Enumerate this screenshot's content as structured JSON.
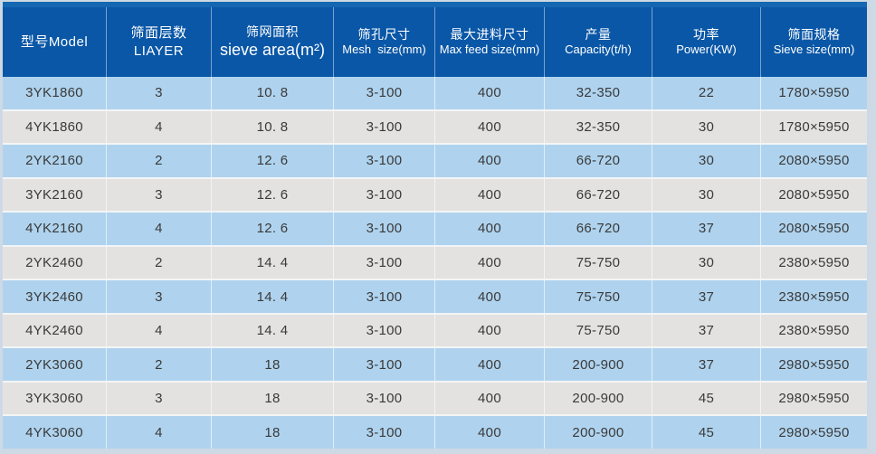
{
  "colors": {
    "frame_bg": "#cdd9e4",
    "header_bg": "#0a57a7",
    "header_strip": "#1567b2",
    "row_blue": "#afd3ee",
    "row_gray": "#e4e2e0",
    "header_text": "#ffffff",
    "body_text": "#3a3a3a"
  },
  "table": {
    "columns": [
      {
        "id": "model",
        "line1": "型号Model",
        "line2": ""
      },
      {
        "id": "layers",
        "line1": "筛面层数LIAYER",
        "line2": ""
      },
      {
        "id": "sieve-area",
        "line1": "筛网面积",
        "line2": "sieve area(m²)"
      },
      {
        "id": "mesh-size",
        "line1": "筛孔尺寸",
        "line2": "Mesh  size(mm)"
      },
      {
        "id": "max-feed-size",
        "line1": "最大进料尺寸",
        "line2": "Max feed size(mm)"
      },
      {
        "id": "capacity",
        "line1": "产量",
        "line2": "Capacity(t/h)"
      },
      {
        "id": "power",
        "line1": "功率",
        "line2": "Power(KW)"
      },
      {
        "id": "sieve-size",
        "line1": "筛面规格",
        "line2": "Sieve size(mm)"
      }
    ],
    "rows": [
      {
        "cells": [
          "3YK1860",
          "3",
          "10. 8",
          "3-100",
          "400",
          "32-350",
          "22",
          "1780×5950"
        ]
      },
      {
        "cells": [
          "4YK1860",
          "4",
          "10. 8",
          "3-100",
          "400",
          "32-350",
          "30",
          "1780×5950"
        ]
      },
      {
        "cells": [
          "2YK2160",
          "2",
          "12. 6",
          "3-100",
          "400",
          "66-720",
          "30",
          "2080×5950"
        ]
      },
      {
        "cells": [
          "3YK2160",
          "3",
          "12. 6",
          "3-100",
          "400",
          "66-720",
          "30",
          "2080×5950"
        ]
      },
      {
        "cells": [
          "4YK2160",
          "4",
          "12. 6",
          "3-100",
          "400",
          "66-720",
          "37",
          "2080×5950"
        ]
      },
      {
        "cells": [
          "2YK2460",
          "2",
          "14. 4",
          "3-100",
          "400",
          "75-750",
          "30",
          "2380×5950"
        ]
      },
      {
        "cells": [
          "3YK2460",
          "3",
          "14. 4",
          "3-100",
          "400",
          "75-750",
          "37",
          "2380×5950"
        ]
      },
      {
        "cells": [
          "4YK2460",
          "4",
          "14. 4",
          "3-100",
          "400",
          "75-750",
          "37",
          "2380×5950"
        ]
      },
      {
        "cells": [
          "2YK3060",
          "2",
          "18",
          "3-100",
          "400",
          "200-900",
          "37",
          "2980×5950"
        ]
      },
      {
        "cells": [
          "3YK3060",
          "3",
          "18",
          "3-100",
          "400",
          "200-900",
          "45",
          "2980×5950"
        ]
      },
      {
        "cells": [
          "4YK3060",
          "4",
          "18",
          "3-100",
          "400",
          "200-900",
          "45",
          "2980×5950"
        ]
      }
    ]
  }
}
